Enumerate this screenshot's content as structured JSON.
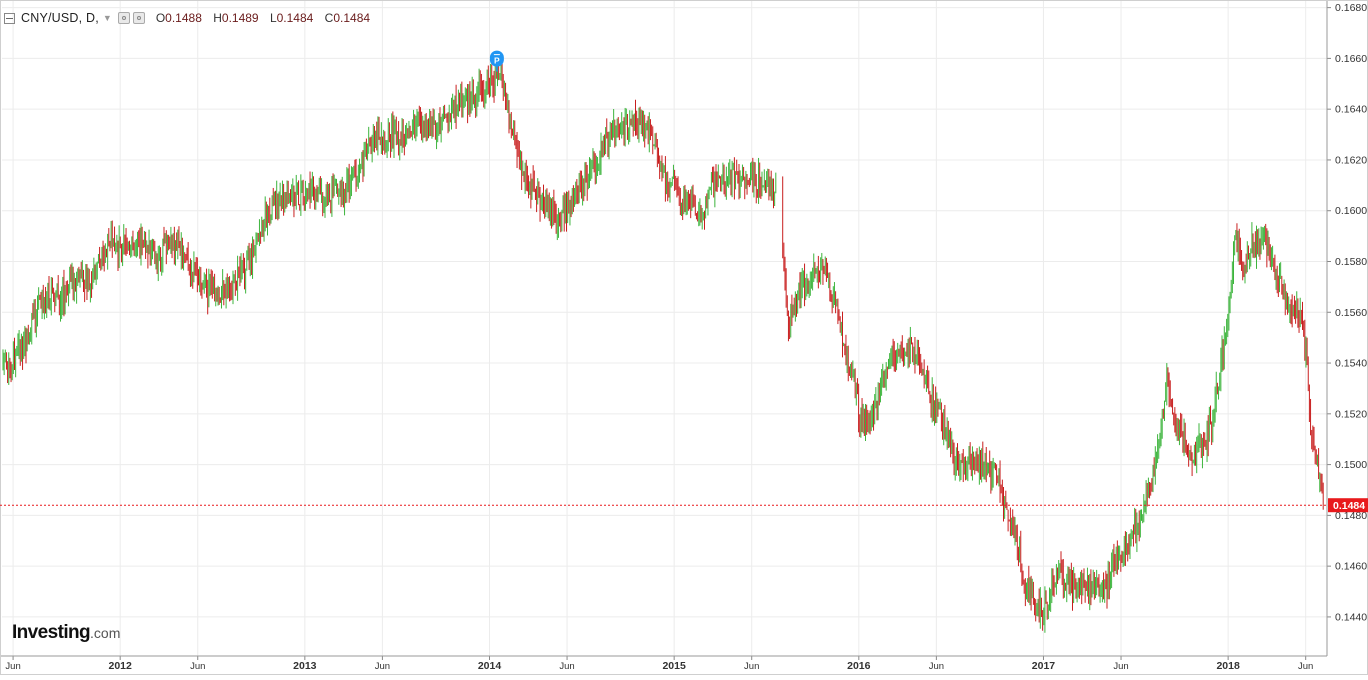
{
  "header": {
    "symbol": "CNY/USD, D,",
    "ohlc": [
      {
        "key": "O",
        "value": "0.1488"
      },
      {
        "key": "H",
        "value": "0.1489"
      },
      {
        "key": "L",
        "value": "0.1484"
      },
      {
        "key": "C",
        "value": "0.1484"
      }
    ]
  },
  "brand": {
    "name": "Investing",
    "suffix": ".com"
  },
  "marker": {
    "label": "P",
    "color": "#2196f3"
  },
  "colors": {
    "up": "#3cb43c",
    "down": "#c81e1e",
    "last_price": "#e8191c",
    "grid": "#ececec"
  },
  "chart_data": {
    "type": "candlestick",
    "title": "CNY/USD, D,",
    "x_ticks": [
      "Jun",
      "2012",
      "Jun",
      "2013",
      "Jun",
      "2014",
      "Jun",
      "2015",
      "Jun",
      "2016",
      "Jun",
      "2017",
      "Jun",
      "2018",
      "Jun"
    ],
    "x_tick_dates": [
      2011.42,
      2012.0,
      2012.42,
      2013.0,
      2013.42,
      2014.0,
      2014.42,
      2015.0,
      2015.42,
      2016.0,
      2016.42,
      2017.0,
      2017.42,
      2018.0,
      2018.42
    ],
    "y_ticks": [
      "0.1680",
      "0.1660",
      "0.1640",
      "0.1620",
      "0.1600",
      "0.1580",
      "0.1560",
      "0.1540",
      "0.1520",
      "0.1500",
      "0.1480",
      "0.1460",
      "0.1440"
    ],
    "ylim": [
      0.1425,
      0.1683
    ],
    "xlim": [
      2011.36,
      2018.53
    ],
    "last_price": "0.1484",
    "grid": true,
    "series": [
      {
        "points": [
          [
            2011.36,
            0.154
          ],
          [
            2011.42,
            0.1541
          ],
          [
            2011.5,
            0.1549
          ],
          [
            2011.56,
            0.1563
          ],
          [
            2011.62,
            0.1567
          ],
          [
            2011.68,
            0.1566
          ],
          [
            2011.73,
            0.1571
          ],
          [
            2011.78,
            0.1575
          ],
          [
            2011.83,
            0.1568
          ],
          [
            2011.88,
            0.158
          ],
          [
            2011.94,
            0.1587
          ],
          [
            2011.98,
            0.1585
          ],
          [
            2012.05,
            0.1587
          ],
          [
            2012.1,
            0.1588
          ],
          [
            2012.15,
            0.1587
          ],
          [
            2012.2,
            0.158
          ],
          [
            2012.25,
            0.1587
          ],
          [
            2012.32,
            0.1585
          ],
          [
            2012.37,
            0.1579
          ],
          [
            2012.42,
            0.1572
          ],
          [
            2012.48,
            0.1569
          ],
          [
            2012.55,
            0.1567
          ],
          [
            2012.6,
            0.1572
          ],
          [
            2012.65,
            0.1574
          ],
          [
            2012.7,
            0.158
          ],
          [
            2012.76,
            0.1593
          ],
          [
            2012.82,
            0.1601
          ],
          [
            2012.88,
            0.1605
          ],
          [
            2012.93,
            0.1606
          ],
          [
            2013.0,
            0.1606
          ],
          [
            2013.05,
            0.1607
          ],
          [
            2013.1,
            0.1604
          ],
          [
            2013.16,
            0.1607
          ],
          [
            2013.22,
            0.1608
          ],
          [
            2013.27,
            0.1615
          ],
          [
            2013.33,
            0.1623
          ],
          [
            2013.38,
            0.163
          ],
          [
            2013.44,
            0.163
          ],
          [
            2013.5,
            0.1629
          ],
          [
            2013.55,
            0.1632
          ],
          [
            2013.6,
            0.1634
          ],
          [
            2013.66,
            0.1634
          ],
          [
            2013.72,
            0.1634
          ],
          [
            2013.78,
            0.1638
          ],
          [
            2013.84,
            0.1643
          ],
          [
            2013.9,
            0.1643
          ],
          [
            2013.95,
            0.1646
          ],
          [
            2014.0,
            0.1651
          ],
          [
            2014.04,
            0.1654
          ],
          [
            2014.08,
            0.1648
          ],
          [
            2014.12,
            0.1633
          ],
          [
            2014.16,
            0.1621
          ],
          [
            2014.21,
            0.1612
          ],
          [
            2014.26,
            0.1605
          ],
          [
            2014.32,
            0.1602
          ],
          [
            2014.36,
            0.1598
          ],
          [
            2014.42,
            0.16
          ],
          [
            2014.48,
            0.1606
          ],
          [
            2014.55,
            0.1614
          ],
          [
            2014.6,
            0.1623
          ],
          [
            2014.66,
            0.163
          ],
          [
            2014.72,
            0.1631
          ],
          [
            2014.78,
            0.1634
          ],
          [
            2014.84,
            0.1634
          ],
          [
            2014.9,
            0.1626
          ],
          [
            2014.95,
            0.1611
          ],
          [
            2015.0,
            0.161
          ],
          [
            2015.05,
            0.1603
          ],
          [
            2015.1,
            0.1602
          ],
          [
            2015.15,
            0.1597
          ],
          [
            2015.2,
            0.1609
          ],
          [
            2015.25,
            0.1613
          ],
          [
            2015.31,
            0.1612
          ],
          [
            2015.37,
            0.1613
          ],
          [
            2015.43,
            0.1612
          ],
          [
            2015.5,
            0.161
          ],
          [
            2015.55,
            0.161
          ],
          [
            2015.58,
            0.1588
          ],
          [
            2015.62,
            0.1555
          ],
          [
            2015.66,
            0.1565
          ],
          [
            2015.7,
            0.1572
          ],
          [
            2015.75,
            0.1576
          ],
          [
            2015.8,
            0.1579
          ],
          [
            2015.84,
            0.157
          ],
          [
            2015.88,
            0.1563
          ],
          [
            2015.93,
            0.1543
          ],
          [
            2015.97,
            0.1537
          ],
          [
            2016.0,
            0.152
          ],
          [
            2016.03,
            0.1517
          ],
          [
            2016.08,
            0.1519
          ],
          [
            2016.13,
            0.1532
          ],
          [
            2016.18,
            0.1542
          ],
          [
            2016.23,
            0.1544
          ],
          [
            2016.28,
            0.1547
          ],
          [
            2016.33,
            0.1541
          ],
          [
            2016.38,
            0.1528
          ],
          [
            2016.43,
            0.152
          ],
          [
            2016.48,
            0.1512
          ],
          [
            2016.52,
            0.15
          ],
          [
            2016.56,
            0.1498
          ],
          [
            2016.62,
            0.15
          ],
          [
            2016.68,
            0.15
          ],
          [
            2016.74,
            0.1496
          ],
          [
            2016.8,
            0.1483
          ],
          [
            2016.86,
            0.1468
          ],
          [
            2016.91,
            0.1451
          ],
          [
            2016.95,
            0.1446
          ],
          [
            2017.0,
            0.144
          ],
          [
            2017.04,
            0.1452
          ],
          [
            2017.09,
            0.1457
          ],
          [
            2017.14,
            0.1453
          ],
          [
            2017.19,
            0.1452
          ],
          [
            2017.24,
            0.1451
          ],
          [
            2017.3,
            0.1451
          ],
          [
            2017.34,
            0.145
          ],
          [
            2017.38,
            0.1463
          ],
          [
            2017.44,
            0.1468
          ],
          [
            2017.5,
            0.1474
          ],
          [
            2017.55,
            0.1486
          ],
          [
            2017.6,
            0.1497
          ],
          [
            2017.64,
            0.1516
          ],
          [
            2017.67,
            0.1535
          ],
          [
            2017.72,
            0.1515
          ],
          [
            2017.77,
            0.1508
          ],
          [
            2017.82,
            0.1505
          ],
          [
            2017.87,
            0.1508
          ],
          [
            2017.92,
            0.152
          ],
          [
            2017.96,
            0.154
          ],
          [
            2018.0,
            0.1557
          ],
          [
            2018.04,
            0.159
          ],
          [
            2018.08,
            0.1577
          ],
          [
            2018.12,
            0.1587
          ],
          [
            2018.16,
            0.1586
          ],
          [
            2018.2,
            0.159
          ],
          [
            2018.26,
            0.1577
          ],
          [
            2018.31,
            0.1566
          ],
          [
            2018.35,
            0.156
          ],
          [
            2018.39,
            0.1561
          ],
          [
            2018.42,
            0.1545
          ],
          [
            2018.45,
            0.151
          ],
          [
            2018.49,
            0.1495
          ],
          [
            2018.53,
            0.1484
          ]
        ]
      }
    ]
  }
}
